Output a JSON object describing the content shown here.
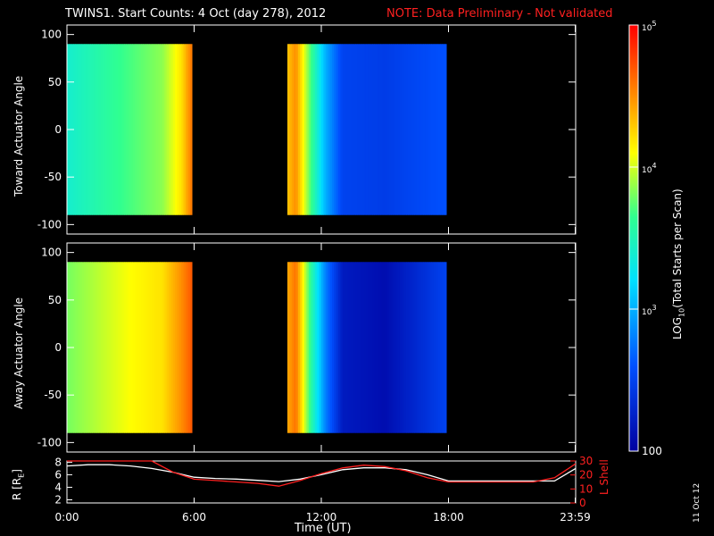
{
  "header": {
    "title": "TWINS1. Start Counts:  4 Oct (day 278), 2012",
    "note": "NOTE: Data Preliminary - Not validated",
    "note_color": "#ff2020"
  },
  "side_date": "11 Oct 12",
  "colors": {
    "background": "#000000",
    "axes": "#ffffff",
    "lshell": "#ff2020"
  },
  "chart_data": [
    {
      "type": "heatmap",
      "ylabel": "Toward Actuator Angle",
      "ylim": [
        -110,
        110
      ],
      "yticks": [
        100,
        50,
        0,
        -50,
        -100
      ],
      "xlim": [
        0,
        24
      ],
      "xticks": [
        0,
        6,
        12,
        18,
        23.98
      ],
      "data_coverage_hours": [
        [
          0.0,
          5.9
        ],
        [
          10.4,
          17.9
        ]
      ],
      "angle_range": [
        -90,
        90
      ],
      "colormap": "rainbow (blue=low, red=high)",
      "log10_profile": [
        {
          "t": 0.0,
          "v": 3.4
        },
        {
          "t": 1.5,
          "v": 3.55
        },
        {
          "t": 3.0,
          "v": 3.7
        },
        {
          "t": 4.5,
          "v": 3.85
        },
        {
          "t": 5.4,
          "v": 4.2
        },
        {
          "t": 5.9,
          "v": 4.6
        },
        {
          "t": 10.4,
          "v": 4.3
        },
        {
          "t": 10.8,
          "v": 4.5
        },
        {
          "t": 11.5,
          "v": 3.7
        },
        {
          "t": 12.2,
          "v": 3.0
        },
        {
          "t": 13.0,
          "v": 2.5
        },
        {
          "t": 15.0,
          "v": 2.45
        },
        {
          "t": 17.9,
          "v": 2.6
        }
      ]
    },
    {
      "type": "heatmap",
      "ylabel": "Away Actuator Angle",
      "ylim": [
        -110,
        110
      ],
      "yticks": [
        100,
        50,
        0,
        -50,
        -100
      ],
      "xlim": [
        0,
        24
      ],
      "xticks": [
        0,
        6,
        12,
        18,
        23.98
      ],
      "data_coverage_hours": [
        [
          0.0,
          5.9
        ],
        [
          10.4,
          17.9
        ]
      ],
      "angle_range": [
        -90,
        90
      ],
      "colormap": "rainbow (blue=low, red=high)",
      "log10_profile": [
        {
          "t": 0.0,
          "v": 3.8
        },
        {
          "t": 1.5,
          "v": 3.95
        },
        {
          "t": 3.0,
          "v": 4.1
        },
        {
          "t": 4.5,
          "v": 4.2
        },
        {
          "t": 5.4,
          "v": 4.5
        },
        {
          "t": 5.9,
          "v": 4.7
        },
        {
          "t": 10.4,
          "v": 4.4
        },
        {
          "t": 10.8,
          "v": 4.6
        },
        {
          "t": 11.5,
          "v": 3.6
        },
        {
          "t": 12.2,
          "v": 2.8
        },
        {
          "t": 13.0,
          "v": 2.2
        },
        {
          "t": 15.0,
          "v": 2.1
        },
        {
          "t": 17.9,
          "v": 2.5
        }
      ]
    },
    {
      "type": "line",
      "xlabel": "Time (UT)",
      "xticklabels": [
        "0:00",
        "6:00",
        "12:00",
        "18:00",
        "23:59"
      ],
      "xticks": [
        0,
        6,
        12,
        18,
        23.98
      ],
      "xlim": [
        0,
        24
      ],
      "ylabel": "R [R",
      "ylabel_sub": "E",
      "ylabel_end": "]",
      "ylim": [
        1.5,
        8.2
      ],
      "yticks": [
        2,
        4,
        6,
        8
      ],
      "y2label": "L Shell",
      "y2lim": [
        0,
        30
      ],
      "y2ticks": [
        0,
        10,
        20,
        30
      ],
      "series": [
        {
          "axis": "left",
          "color": "#ffffff",
          "x": [
            0,
            1,
            2,
            3,
            4,
            5,
            6,
            7,
            8,
            9,
            10,
            11,
            12,
            13,
            14,
            15,
            16,
            17,
            18,
            19,
            20,
            21,
            22,
            23,
            24
          ],
          "y": [
            7.4,
            7.6,
            7.6,
            7.4,
            7.0,
            6.4,
            5.6,
            5.4,
            5.3,
            5.1,
            4.9,
            5.3,
            6.0,
            6.8,
            7.1,
            7.1,
            6.8,
            6.0,
            5.0,
            5.0,
            5.0,
            5.0,
            5.0,
            5.0,
            7.0
          ]
        },
        {
          "axis": "right",
          "color": "#ff2020",
          "x": [
            0,
            1,
            2,
            3,
            4,
            5,
            6,
            7,
            8,
            9,
            10,
            11,
            12,
            13,
            14,
            15,
            16,
            17,
            18,
            19,
            20,
            21,
            22,
            23,
            24
          ],
          "y": [
            30,
            30,
            30,
            30,
            30,
            22,
            17,
            16,
            15,
            14,
            12,
            16,
            21,
            25,
            27,
            26,
            23,
            18,
            15,
            15,
            15,
            15,
            15,
            18,
            28
          ]
        }
      ]
    },
    {
      "type": "heatmap",
      "role": "colorbar",
      "label": "LOG",
      "label_sub": "10",
      "label_end": "(Total Starts per Scan)",
      "ticks": [
        {
          "log10": 5,
          "label": "10",
          "sup": "5"
        },
        {
          "log10": 4,
          "label": "10",
          "sup": "4"
        },
        {
          "log10": 3,
          "label": "10",
          "sup": "3"
        },
        {
          "log10": 2,
          "label": "100",
          "sup": ""
        }
      ],
      "range_log10": [
        2,
        5
      ]
    }
  ]
}
